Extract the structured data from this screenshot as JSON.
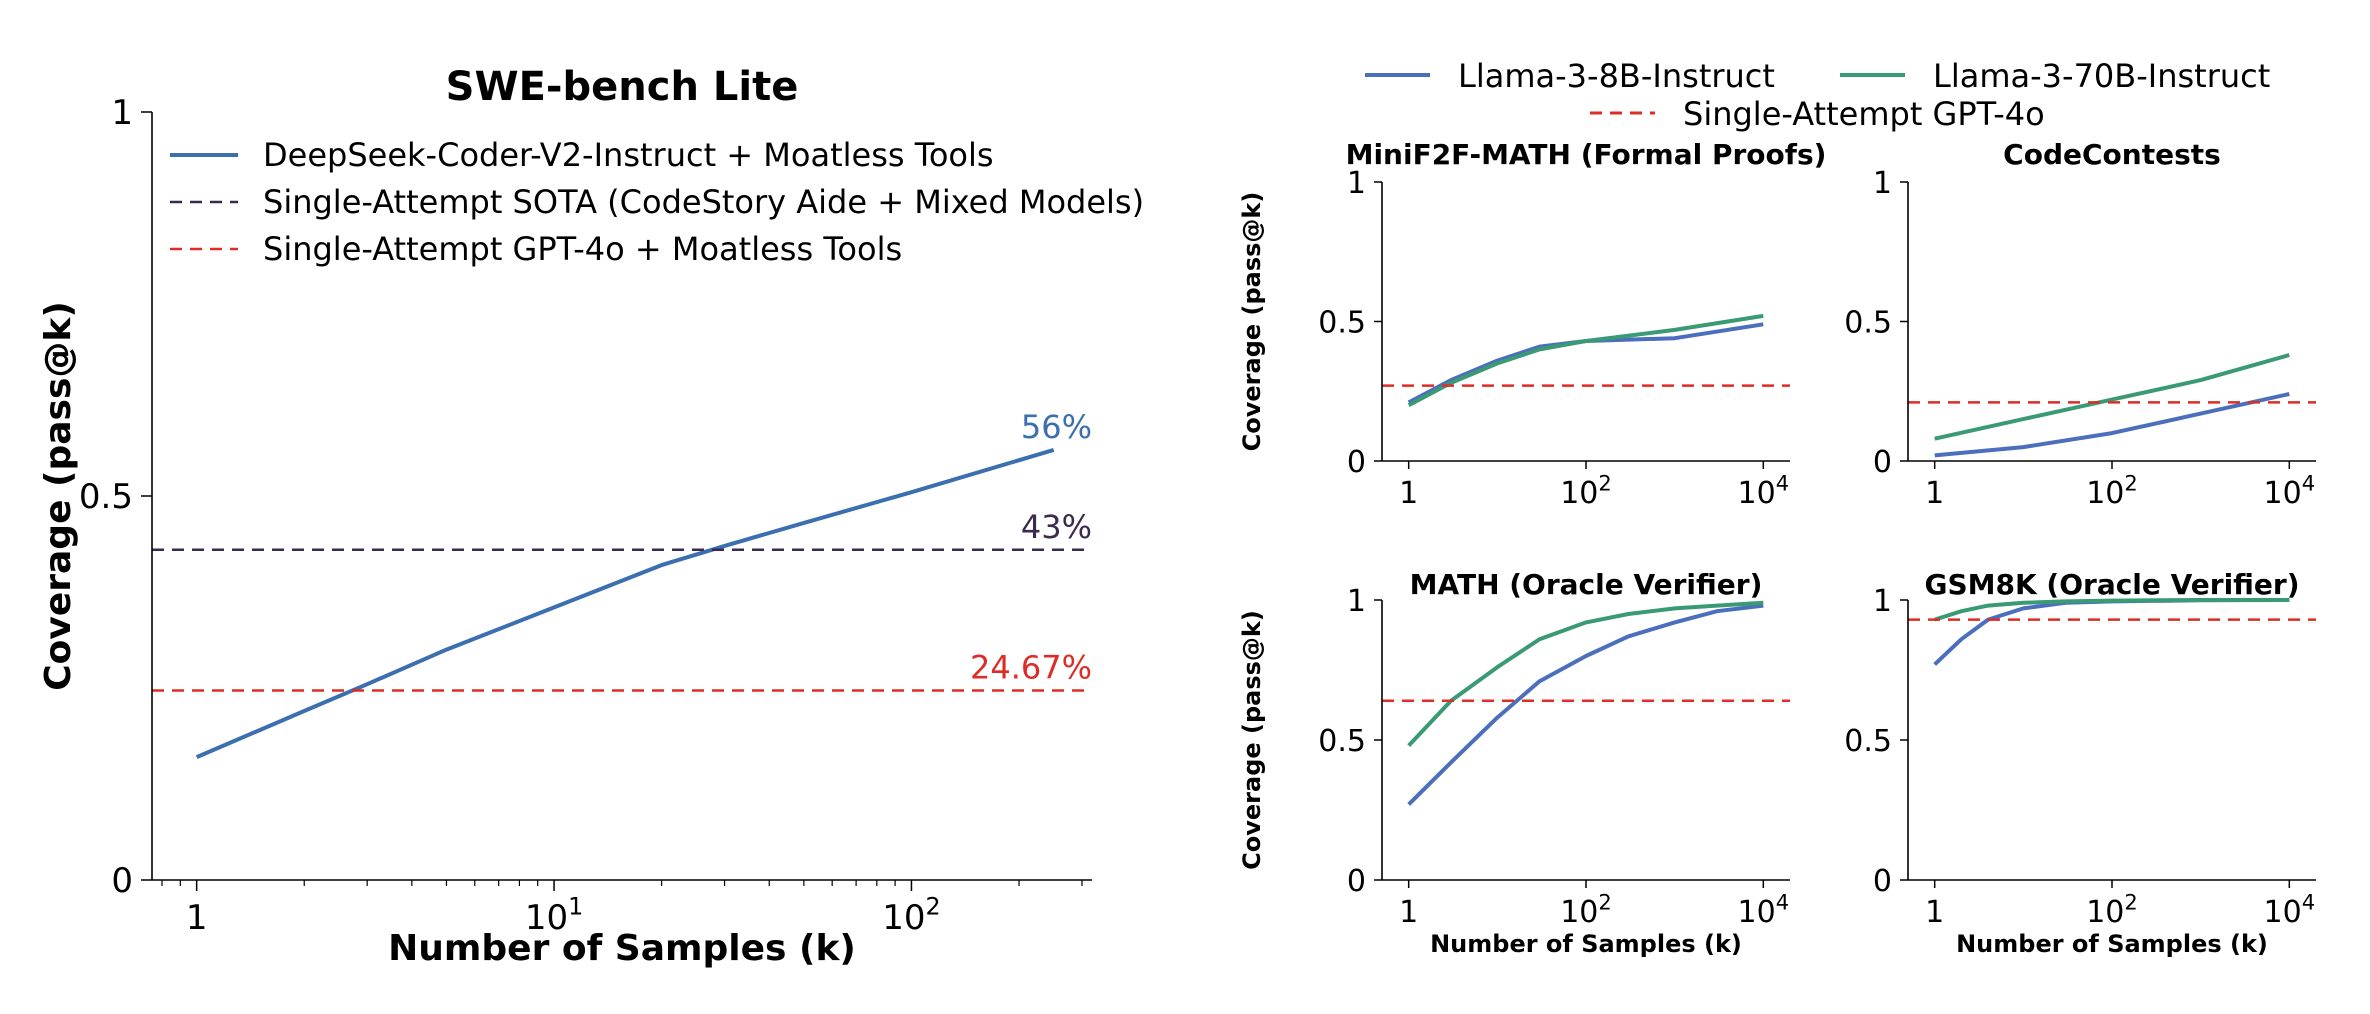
{
  "colors": {
    "deepseek": "#3b6fb0",
    "sota": "#3b2a4f",
    "gpt4o": "#de2d26",
    "llama8b": "#4b6fbc",
    "llama70b": "#3a9a74"
  },
  "legend_right": {
    "llama8b": "Llama-3-8B-Instruct",
    "llama70b": "Llama-3-70B-Instruct",
    "gpt4o": "Single-Attempt GPT-4o"
  },
  "chart_data": [
    {
      "type": "line",
      "title": "SWE-bench Lite",
      "xlabel": "Number of Samples (k)",
      "ylabel": "Coverage (pass@k)",
      "xscale": "log",
      "xlim": [
        0.75,
        320
      ],
      "ylim": [
        0,
        1
      ],
      "yticks": [
        "0",
        "0.5",
        "1"
      ],
      "xticks": [
        "1",
        "10^1",
        "10^2"
      ],
      "legend_placement": "top-left",
      "series": [
        {
          "name": "DeepSeek-Coder-V2-Instruct + Moatless Tools",
          "color_key": "deepseek",
          "style": "solid",
          "x": [
            1,
            2,
            3,
            5,
            10,
            20,
            30,
            50,
            100,
            250
          ],
          "y": [
            0.16,
            0.22,
            0.255,
            0.3,
            0.355,
            0.41,
            0.435,
            0.465,
            0.505,
            0.56
          ]
        },
        {
          "name": "Single-Attempt SOTA (CodeStory Aide + Mixed Models)",
          "color_key": "sota",
          "style": "dashed",
          "hline": 0.43
        },
        {
          "name": "Single-Attempt GPT-4o + Moatless Tools",
          "color_key": "gpt4o",
          "style": "dashed",
          "hline": 0.2467
        }
      ],
      "annotations": [
        {
          "text": "56%",
          "x": 250,
          "y": 0.56,
          "color_key": "deepseek"
        },
        {
          "text": "43%",
          "x": 250,
          "y": 0.43,
          "color_key": "sota"
        },
        {
          "text": "24.67%",
          "x": 250,
          "y": 0.2467,
          "color_key": "gpt4o"
        }
      ]
    },
    {
      "type": "line",
      "title": "MiniF2F-MATH (Formal Proofs)",
      "xlabel": "",
      "ylabel": "Coverage (pass@k)",
      "xscale": "log",
      "xlim": [
        0.5,
        20000
      ],
      "ylim": [
        0,
        1
      ],
      "yticks": [
        "0",
        "0.5",
        "1"
      ],
      "xticks": [
        "1",
        "10^2",
        "10^4"
      ],
      "series": [
        {
          "name": "Llama-3-8B-Instruct",
          "color_key": "llama8b",
          "x": [
            1,
            3,
            10,
            30,
            100,
            1000,
            10000
          ],
          "y": [
            0.21,
            0.29,
            0.36,
            0.41,
            0.43,
            0.44,
            0.49
          ]
        },
        {
          "name": "Llama-3-70B-Instruct",
          "color_key": "llama70b",
          "x": [
            1,
            3,
            10,
            30,
            100,
            1000,
            10000
          ],
          "y": [
            0.2,
            0.28,
            0.35,
            0.4,
            0.43,
            0.47,
            0.52
          ]
        },
        {
          "name": "Single-Attempt GPT-4o",
          "color_key": "gpt4o",
          "style": "dashed",
          "hline": 0.27
        }
      ]
    },
    {
      "type": "line",
      "title": "CodeContests",
      "xlabel": "",
      "ylabel": "",
      "xscale": "log",
      "xlim": [
        0.5,
        20000
      ],
      "ylim": [
        0,
        1
      ],
      "yticks": [
        "0",
        "0.5",
        "1"
      ],
      "xticks": [
        "1",
        "10^2",
        "10^4"
      ],
      "series": [
        {
          "name": "Llama-3-8B-Instruct",
          "color_key": "llama8b",
          "x": [
            1,
            10,
            100,
            1000,
            10000
          ],
          "y": [
            0.02,
            0.05,
            0.1,
            0.17,
            0.24
          ]
        },
        {
          "name": "Llama-3-70B-Instruct",
          "color_key": "llama70b",
          "x": [
            1,
            10,
            100,
            1000,
            10000
          ],
          "y": [
            0.08,
            0.15,
            0.22,
            0.29,
            0.38
          ]
        },
        {
          "name": "Single-Attempt GPT-4o",
          "color_key": "gpt4o",
          "style": "dashed",
          "hline": 0.21
        }
      ]
    },
    {
      "type": "line",
      "title": "MATH (Oracle Verifier)",
      "xlabel": "Number of Samples (k)",
      "ylabel": "Coverage (pass@k)",
      "xscale": "log",
      "xlim": [
        0.5,
        20000
      ],
      "ylim": [
        0,
        1
      ],
      "yticks": [
        "0",
        "0.5",
        "1"
      ],
      "xticks": [
        "1",
        "10^2",
        "10^4"
      ],
      "series": [
        {
          "name": "Llama-3-8B-Instruct",
          "color_key": "llama8b",
          "x": [
            1,
            3,
            10,
            30,
            100,
            300,
            1000,
            3000,
            10000
          ],
          "y": [
            0.27,
            0.42,
            0.58,
            0.71,
            0.8,
            0.87,
            0.92,
            0.96,
            0.98
          ]
        },
        {
          "name": "Llama-3-70B-Instruct",
          "color_key": "llama70b",
          "x": [
            1,
            3,
            10,
            30,
            100,
            300,
            1000,
            3000,
            10000
          ],
          "y": [
            0.48,
            0.64,
            0.76,
            0.86,
            0.92,
            0.95,
            0.97,
            0.98,
            0.99
          ]
        },
        {
          "name": "Single-Attempt GPT-4o",
          "color_key": "gpt4o",
          "style": "dashed",
          "hline": 0.64
        }
      ]
    },
    {
      "type": "line",
      "title": "GSM8K (Oracle Verifier)",
      "xlabel": "Number of Samples (k)",
      "ylabel": "",
      "xscale": "log",
      "xlim": [
        0.5,
        20000
      ],
      "ylim": [
        0,
        1
      ],
      "yticks": [
        "0",
        "0.5",
        "1"
      ],
      "xticks": [
        "1",
        "10^2",
        "10^4"
      ],
      "series": [
        {
          "name": "Llama-3-8B-Instruct",
          "color_key": "llama8b",
          "x": [
            1,
            2,
            4,
            10,
            30,
            100,
            1000,
            10000
          ],
          "y": [
            0.77,
            0.86,
            0.93,
            0.97,
            0.99,
            0.995,
            0.999,
            1.0
          ]
        },
        {
          "name": "Llama-3-70B-Instruct",
          "color_key": "llama70b",
          "x": [
            1,
            2,
            4,
            10,
            30,
            100,
            1000,
            10000
          ],
          "y": [
            0.93,
            0.96,
            0.98,
            0.99,
            0.995,
            0.998,
            1.0,
            1.0
          ]
        },
        {
          "name": "Single-Attempt GPT-4o",
          "color_key": "gpt4o",
          "style": "dashed",
          "hline": 0.93
        }
      ]
    }
  ]
}
